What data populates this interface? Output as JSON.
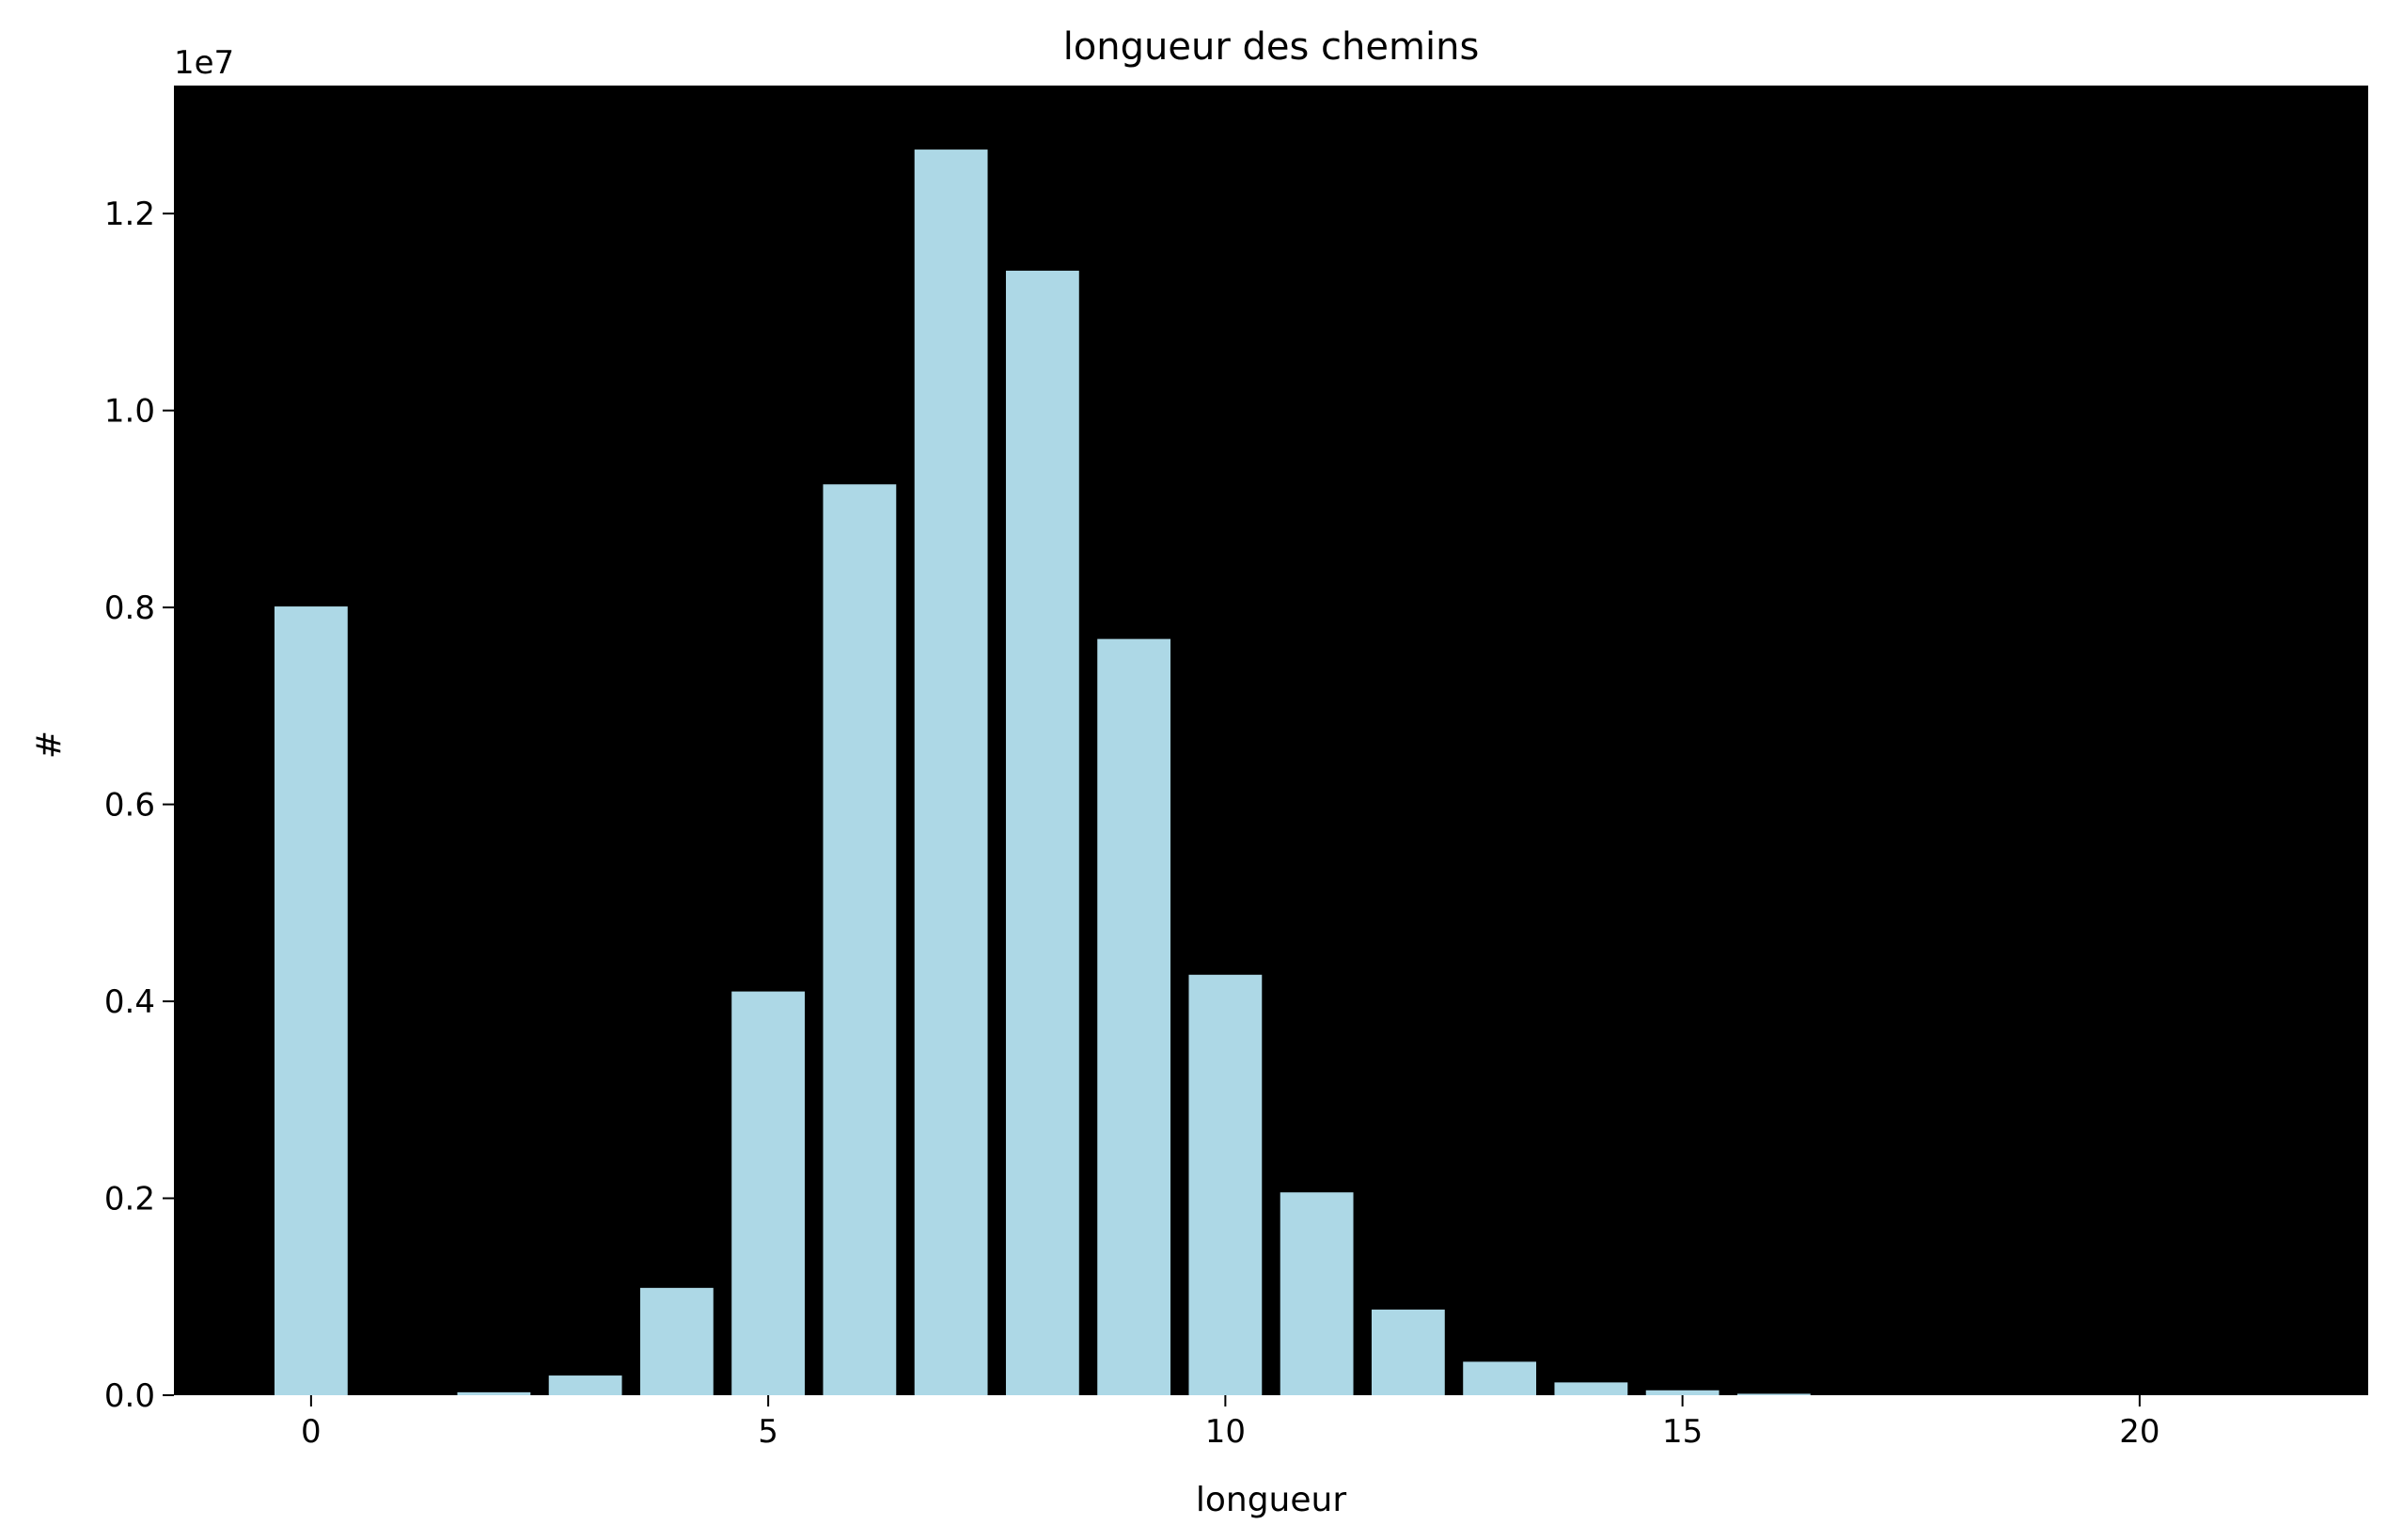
{
  "chart_data": {
    "type": "bar",
    "title": "longueur des chemins",
    "xlabel": "longueur",
    "ylabel": "#",
    "y_offset_label": "1e7",
    "x_ticks": [
      0,
      5,
      10,
      15,
      20
    ],
    "y_ticks": [
      "0.0",
      "0.2",
      "0.4",
      "0.6",
      "0.8",
      "1.0",
      "1.2"
    ],
    "xlim": [
      -1.5,
      22.5
    ],
    "ylim": [
      0,
      13300000
    ],
    "x": [
      0,
      2,
      3,
      4,
      5,
      6,
      7,
      8,
      9,
      10,
      11,
      12,
      13,
      14,
      15,
      16
    ],
    "values": [
      8010000,
      30000,
      200000,
      1090000,
      4100000,
      9250000,
      12650000,
      11420000,
      7680000,
      4270000,
      2060000,
      870000,
      340000,
      130000,
      50000,
      15000
    ],
    "bar_color": "#add8e6",
    "plot_background": "#000000",
    "page_background": "#ffffff",
    "grid": false,
    "legend": "none"
  }
}
